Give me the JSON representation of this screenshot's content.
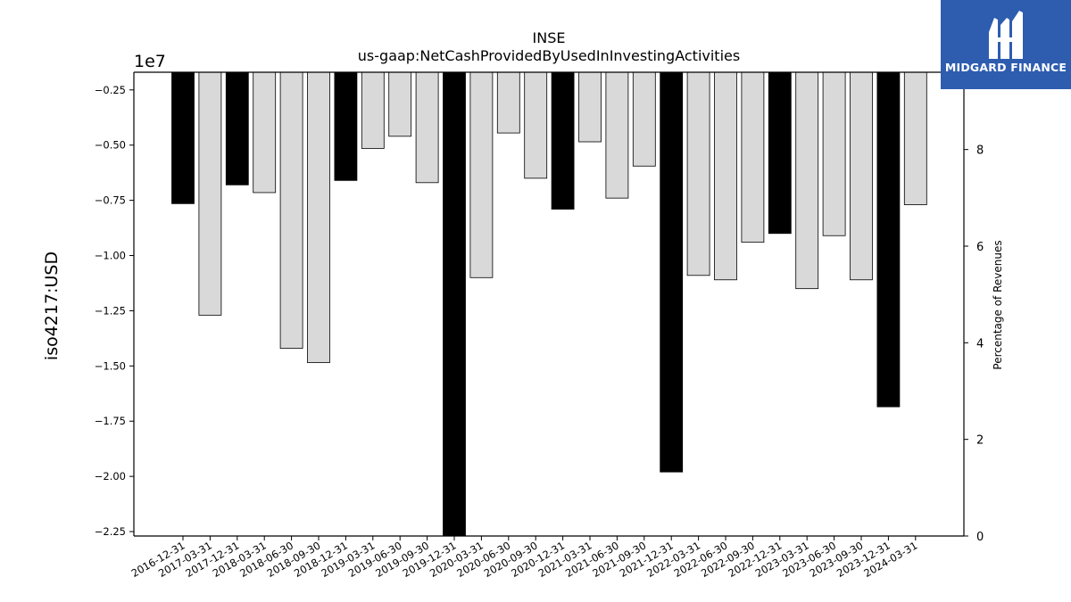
{
  "chart_data": {
    "type": "bar",
    "title": "INSE",
    "subtitle": "us-gaap:NetCashProvidedByUsedInInvestingActivities",
    "ylabel": "iso4217:USD",
    "y2label": "Percentage of Revenues",
    "offset_label": "1e7",
    "ylim": [
      -22700000,
      -1700000
    ],
    "y_ticks": [
      -2500000,
      -5000000,
      -7500000,
      -10000000,
      -12500000,
      -15000000,
      -17500000,
      -20000000,
      -22500000
    ],
    "y_tick_labels": [
      "−0.25",
      "−0.50",
      "−0.75",
      "−1.00",
      "−1.25",
      "−1.50",
      "−1.75",
      "−2.00",
      "−2.25"
    ],
    "y2lim": [
      0,
      9.6
    ],
    "y2_ticks": [
      0,
      2,
      4,
      6,
      8
    ],
    "y2_tick_labels": [
      "0",
      "2",
      "4",
      "6",
      "8"
    ],
    "categories": [
      "2016-12-31",
      "2017-03-31",
      "2017-12-31",
      "2018-03-31",
      "2018-06-30",
      "2018-09-30",
      "2018-12-31",
      "2019-03-31",
      "2019-06-30",
      "2019-09-30",
      "2019-12-31",
      "2020-03-31",
      "2020-06-30",
      "2020-09-30",
      "2020-12-31",
      "2021-03-31",
      "2021-06-30",
      "2021-09-30",
      "2021-12-31",
      "2022-03-31",
      "2022-06-30",
      "2022-09-30",
      "2022-12-31",
      "2023-03-31",
      "2023-06-30",
      "2023-09-30",
      "2023-12-31",
      "2024-03-31"
    ],
    "values": [
      -7650000,
      -12700000,
      -6800000,
      -7150000,
      -14200000,
      -14850000,
      -6600000,
      -5150000,
      -4600000,
      -6700000,
      -22700000,
      -11000000,
      -4450000,
      -6500000,
      -7900000,
      -4850000,
      -7400000,
      -5950000,
      -19800000,
      -10900000,
      -11100000,
      -9400000,
      -9000000,
      -11500000,
      -9100000,
      -11100000,
      -16850000,
      -7700000
    ],
    "annual": [
      true,
      false,
      true,
      false,
      false,
      false,
      true,
      false,
      false,
      false,
      true,
      false,
      false,
      false,
      true,
      false,
      false,
      false,
      true,
      false,
      false,
      false,
      true,
      false,
      false,
      false,
      true,
      false
    ],
    "colors": {
      "annual": "#000000",
      "quarterly": "#d9d9d9",
      "edge": "#000000"
    },
    "grid": false
  },
  "logo": {
    "text": "MIDGARD FINANCE",
    "color": "#2e5db0"
  }
}
